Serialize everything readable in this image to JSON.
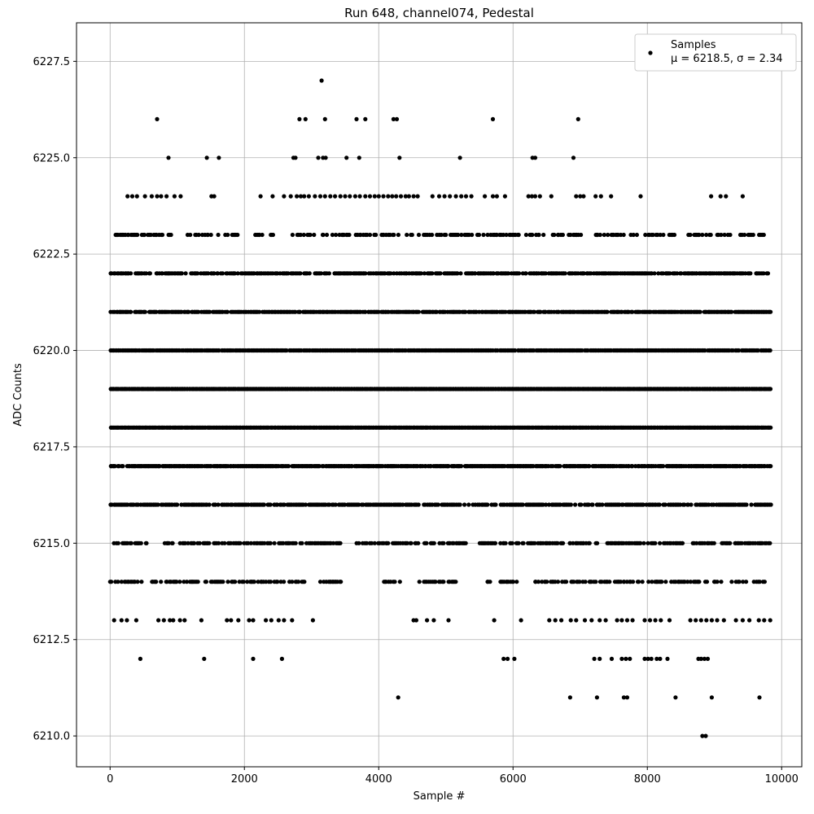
{
  "chart_data": {
    "type": "scatter",
    "title": "Run 648, channel074, Pedestal",
    "xlabel": "Sample #",
    "ylabel": "ADC Counts",
    "xlim": [
      -500,
      10300
    ],
    "ylim": [
      6209.2,
      6228.5
    ],
    "xticks": [
      0,
      2000,
      4000,
      6000,
      8000,
      10000
    ],
    "xtick_labels": [
      "0",
      "2000",
      "4000",
      "6000",
      "8000",
      "10000"
    ],
    "yticks": [
      6210.0,
      6212.5,
      6215.0,
      6217.5,
      6220.0,
      6222.5,
      6225.0,
      6227.5
    ],
    "ytick_labels": [
      "6210.0",
      "6212.5",
      "6215.0",
      "6217.5",
      "6220.0",
      "6222.5",
      "6225.0",
      "6227.5"
    ],
    "grid": true,
    "legend": {
      "placement": "top-right",
      "label": "Samples",
      "stats": "μ = 6218.5, σ = 2.34"
    },
    "marker_color": "#000000",
    "series": [
      {
        "name": "Samples",
        "levels": [
          {
            "y": 6210,
            "points": [
              8820,
              8870
            ]
          },
          {
            "y": 6211,
            "points": [
              4290,
              6850,
              7250,
              7650,
              7700,
              8420,
              8960,
              9670
            ]
          },
          {
            "y": 6212,
            "points": [
              450,
              1400,
              2130,
              2560,
              5860,
              5920,
              6020,
              7210,
              7290,
              7470,
              7620,
              7680,
              7740,
              7960,
              8010,
              8060,
              8140,
              8190,
              8300,
              8760,
              8800,
              8850,
              8900
            ]
          },
          {
            "y": 6213,
            "points": [
              60,
              170,
              250,
              390,
              720,
              800,
              890,
              940,
              1040,
              1110,
              1360,
              1740,
              1800,
              1910,
              2070,
              2130,
              2320,
              2400,
              2510,
              2590,
              2710,
              3020,
              4520,
              4560,
              4720,
              4820,
              5040,
              5720,
              6120,
              6540,
              6630,
              6720,
              6860,
              6940,
              7070,
              7170,
              7290,
              7380,
              7550,
              7620,
              7700,
              7780,
              7960,
              8040,
              8120,
              8200,
              8330,
              8640,
              8720,
              8800,
              8880,
              8960,
              9040,
              9140,
              9320,
              9420,
              9520,
              9660,
              9740,
              9830
            ]
          },
          {
            "y": 6214,
            "points_range": [
              [
                0,
                1300
              ],
              [
                1300,
                2900
              ],
              [
                3050,
                3450
              ],
              [
                4000,
                4350
              ],
              [
                4600,
                5150
              ],
              [
                5500,
                5650
              ],
              [
                5800,
                6100
              ],
              [
                6300,
                7600
              ],
              [
                7600,
                9100
              ],
              [
                9200,
                9750
              ]
            ],
            "density": 0.5
          },
          {
            "y": 6215,
            "points_range": [
              [
                0,
                600
              ],
              [
                800,
                3450
              ],
              [
                3650,
                5300
              ],
              [
                5500,
                9820
              ]
            ],
            "density": 0.6
          },
          {
            "y": 6216,
            "points_range": [
              [
                0,
                9840
              ]
            ],
            "density": 0.75
          },
          {
            "y": 6217,
            "points_range": [
              [
                0,
                9840
              ]
            ],
            "density": 0.9
          },
          {
            "y": 6218,
            "points_range": [
              [
                0,
                9840
              ]
            ],
            "density": 1.0
          },
          {
            "y": 6219,
            "points_range": [
              [
                0,
                9840
              ]
            ],
            "density": 1.0
          },
          {
            "y": 6220,
            "points_range": [
              [
                0,
                9840
              ]
            ],
            "density": 0.95
          },
          {
            "y": 6221,
            "points_range": [
              [
                0,
                9840
              ]
            ],
            "density": 0.85
          },
          {
            "y": 6222,
            "points_range": [
              [
                0,
                9840
              ]
            ],
            "density": 0.7
          },
          {
            "y": 6223,
            "points_range": [
              [
                0,
                950
              ],
              [
                1150,
                1900
              ],
              [
                2150,
                2450
              ],
              [
                2650,
                5400
              ],
              [
                5450,
                6450
              ],
              [
                6550,
                7000
              ],
              [
                7150,
                7700
              ],
              [
                7750,
                8450
              ],
              [
                8600,
                9750
              ]
            ],
            "density": 0.45
          },
          {
            "y": 6224,
            "points": [
              260,
              330,
              400,
              520,
              620,
              700,
              760,
              840,
              960,
              1050,
              1510,
              1550,
              2240,
              2420,
              2590,
              2690,
              2780,
              2840,
              2890,
              2960,
              3050,
              3130,
              3200,
              3280,
              3350,
              3430,
              3500,
              3570,
              3650,
              3720,
              3800,
              3870,
              3940,
              4000,
              4070,
              4140,
              4200,
              4260,
              4330,
              4400,
              4450,
              4520,
              4580,
              4800,
              4900,
              4980,
              5060,
              5150,
              5230,
              5300,
              5380,
              5580,
              5700,
              5760,
              5880,
              6230,
              6280,
              6330,
              6400,
              6570,
              6940,
              7000,
              7050,
              7230,
              7310,
              7460,
              7900,
              8950,
              9090,
              9170,
              9420
            ]
          },
          {
            "y": 6225,
            "points": [
              870,
              1440,
              1620,
              2730,
              2760,
              3100,
              3170,
              3210,
              3520,
              3710,
              4310,
              5210,
              6290,
              6330,
              6900
            ]
          },
          {
            "y": 6226,
            "points": [
              700,
              2820,
              2910,
              3200,
              3670,
              3800,
              4220,
              4270,
              5700,
              6970
            ]
          },
          {
            "y": 6227,
            "points": [
              3150
            ]
          }
        ]
      }
    ]
  }
}
